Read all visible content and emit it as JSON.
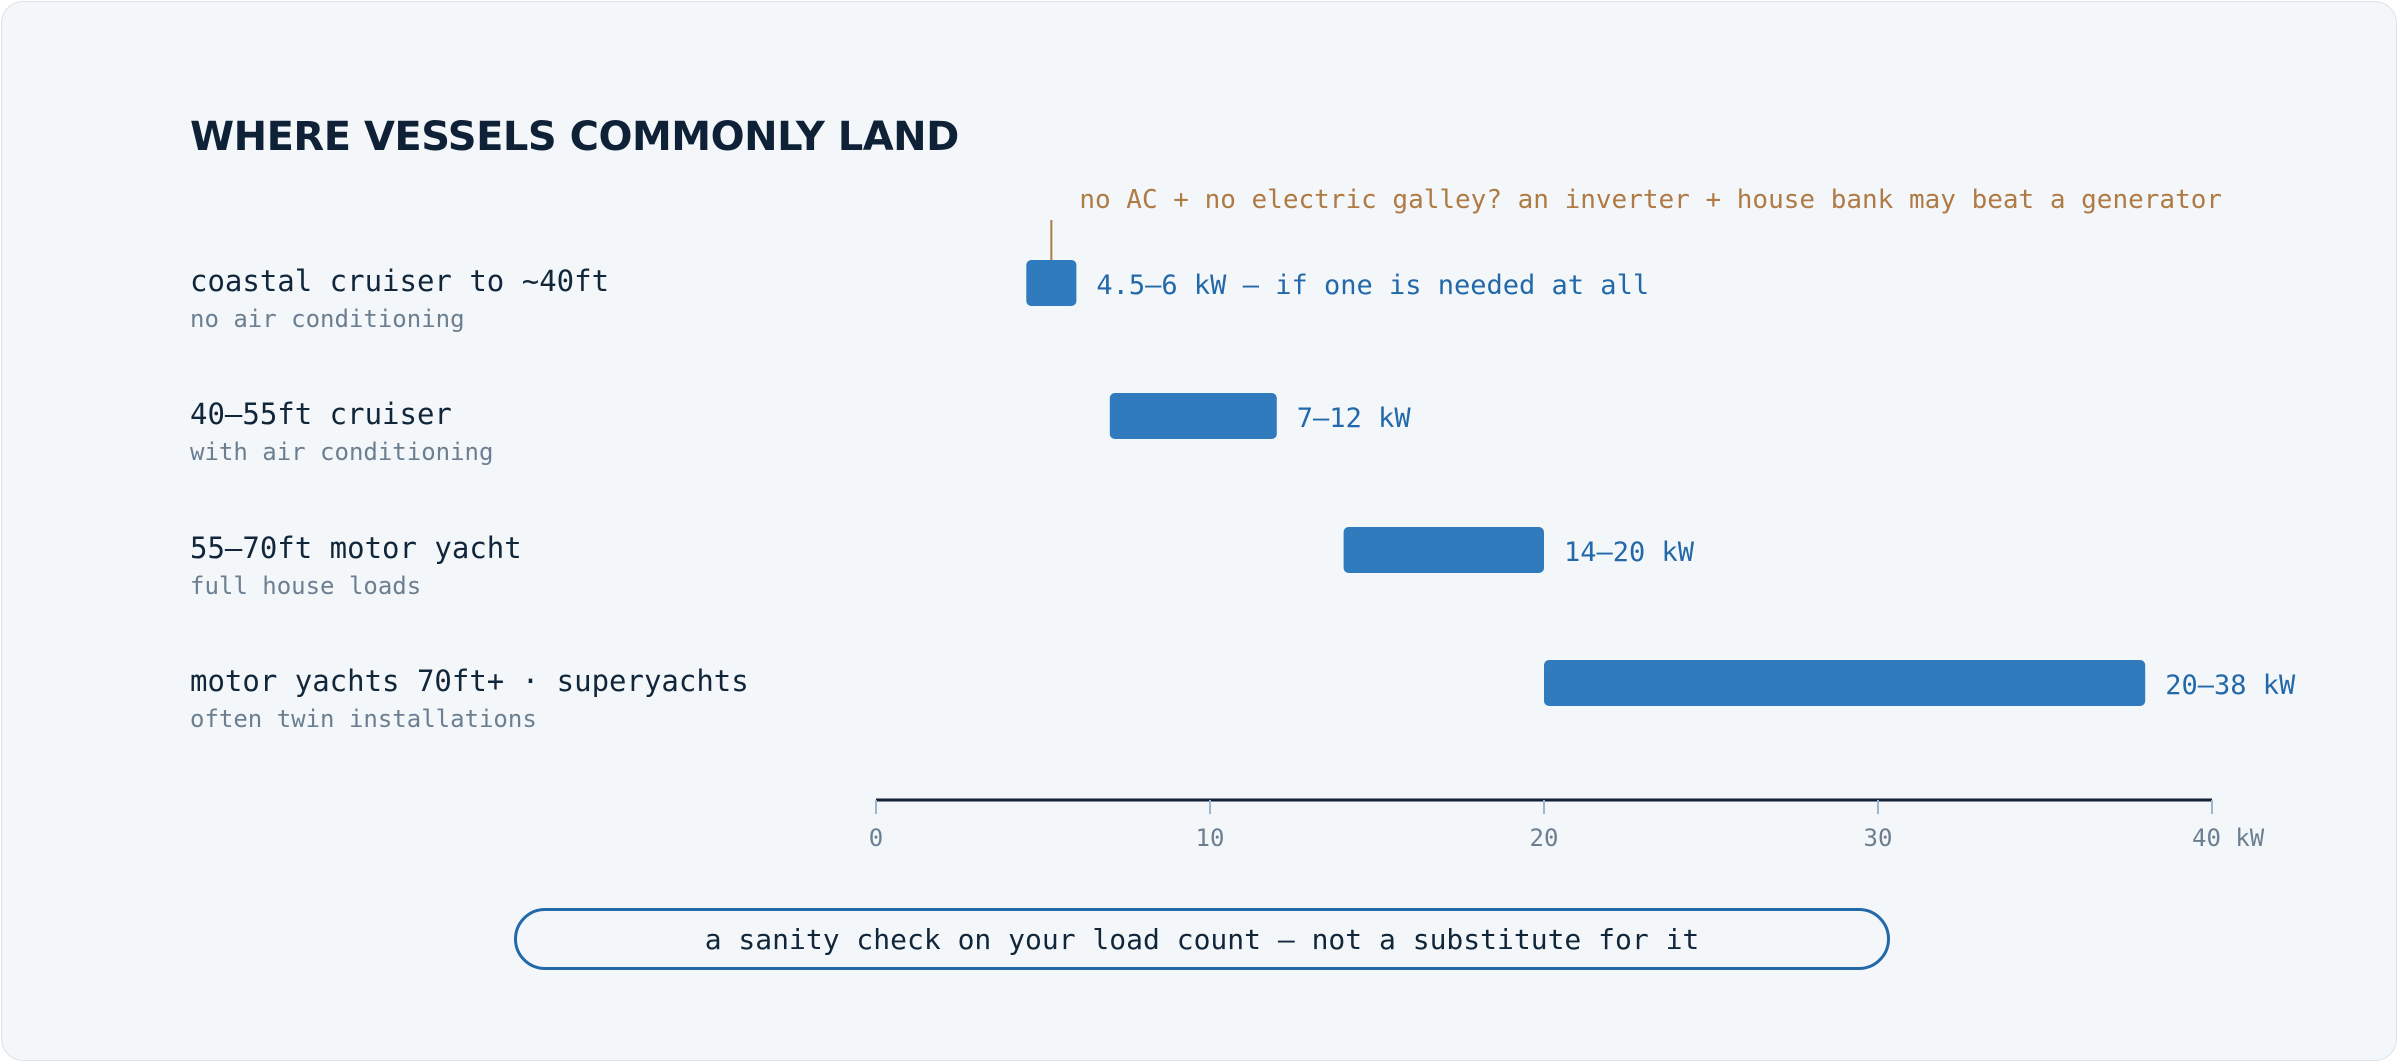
{
  "title": "WHERE VESSELS COMMONLY LAND",
  "note": "a sanity check on your load count — not a substitute for it",
  "colors": {
    "bar": "#2f7bbd",
    "value_label": "#2368a8",
    "annotation": "#b07a44",
    "category": "#12263a",
    "subtitle": "#6c7f91",
    "axis": "#0f2137",
    "tick": "#9bb7d1",
    "tick_label": "#6c7f91"
  },
  "chart_data": {
    "type": "bar",
    "orientation": "horizontal",
    "range_bars": true,
    "xlim": [
      0,
      40
    ],
    "x_unit": "kW",
    "ticks": [
      "0",
      "10",
      "20",
      "30",
      "40 kW"
    ],
    "tick_values": [
      0,
      10,
      20,
      30,
      40
    ],
    "rows": [
      {
        "label": "coastal cruiser to ~40ft",
        "sublabel": "no air conditioning",
        "low": 4.5,
        "high": 6,
        "value_label": "4.5–6 kW — if one is needed at all"
      },
      {
        "label": "40–55ft cruiser",
        "sublabel": "with air conditioning",
        "low": 7,
        "high": 12,
        "value_label": "7–12 kW"
      },
      {
        "label": "55–70ft motor yacht",
        "sublabel": "full house loads",
        "low": 14,
        "high": 20,
        "value_label": "14–20 kW"
      },
      {
        "label": "motor yachts 70ft+ · superyachts",
        "sublabel": "often twin installations",
        "low": 20,
        "high": 38,
        "value_label": "20–38 kW"
      }
    ],
    "annotation": {
      "text": "no AC + no electric galley? an inverter + house bank may beat a generator",
      "row": 0,
      "at": 5.25
    }
  }
}
